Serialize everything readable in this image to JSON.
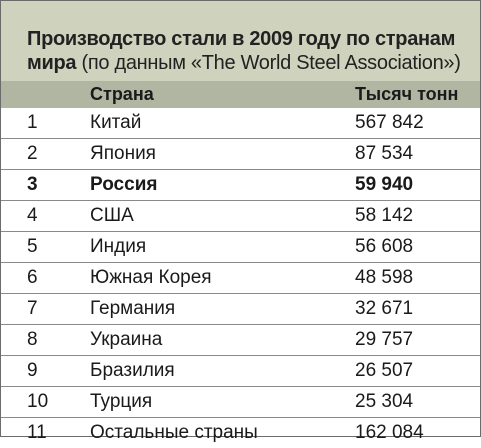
{
  "title": {
    "main": "Производство стали в 2009 году по странам мира",
    "source": "(по данным «The World Steel Association»)"
  },
  "columns": {
    "country": "Страна",
    "value": "Тысяч тонн"
  },
  "rows": [
    {
      "rank": "1",
      "country": "Китай",
      "value": "567 842"
    },
    {
      "rank": "2",
      "country": "Япония",
      "value": "87 534"
    },
    {
      "rank": "3",
      "country": "Россия",
      "value": "59 940"
    },
    {
      "rank": "4",
      "country": "США",
      "value": "58 142"
    },
    {
      "rank": "5",
      "country": "Индия",
      "value": "56 608"
    },
    {
      "rank": "6",
      "country": "Южная Корея",
      "value": "48 598"
    },
    {
      "rank": "7",
      "country": "Германия",
      "value": "32 671"
    },
    {
      "rank": "8",
      "country": "Украина",
      "value": "29 757"
    },
    {
      "rank": "9",
      "country": "Бразилия",
      "value": "26 507"
    },
    {
      "rank": "10",
      "country": "Турция",
      "value": "25 304"
    },
    {
      "rank": "11",
      "country": "Остальные страны",
      "value": "162 084"
    }
  ],
  "highlighted_rank": "3",
  "colors": {
    "header_bg": "#cfd3bd",
    "colhead_bg": "#b1b6a3",
    "rule": "#8a8a8a"
  }
}
